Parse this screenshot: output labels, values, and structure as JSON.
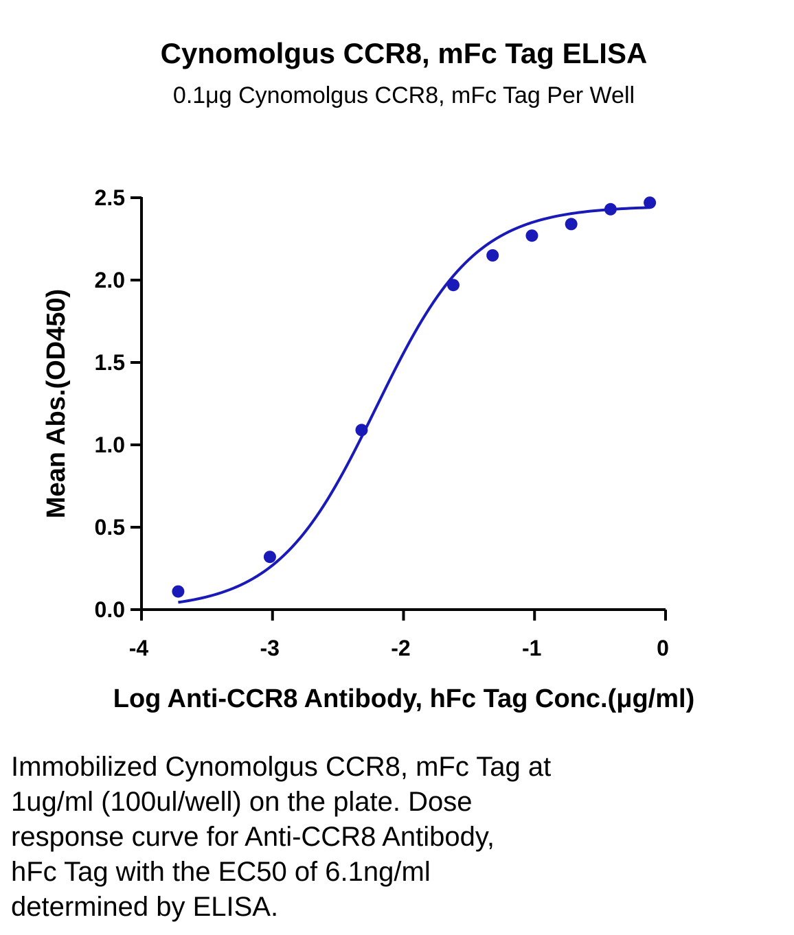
{
  "chart_data": {
    "type": "scatter",
    "title": "Cynomolgus CCR8, mFc Tag ELISA",
    "subtitle": "0.1μg Cynomolgus CCR8, mFc Tag Per Well",
    "xlabel": "Log Anti-CCR8 Antibody, hFc Tag Conc.(μg/ml)",
    "ylabel": "Mean Abs.(OD450)",
    "xlim": [
      -4,
      0
    ],
    "ylim": [
      0,
      2.5
    ],
    "x_ticks": [
      "-4",
      "-3",
      "-2",
      "-1",
      "0"
    ],
    "y_ticks": [
      "0.0",
      "0.5",
      "1.0",
      "1.5",
      "2.0",
      "2.5"
    ],
    "grid": false,
    "color": "#1a1ab8",
    "points": [
      {
        "x": -3.72,
        "y": 0.11
      },
      {
        "x": -3.02,
        "y": 0.32
      },
      {
        "x": -2.32,
        "y": 1.09
      },
      {
        "x": -1.62,
        "y": 1.97
      },
      {
        "x": -1.32,
        "y": 2.15
      },
      {
        "x": -1.02,
        "y": 2.27
      },
      {
        "x": -0.72,
        "y": 2.34
      },
      {
        "x": -0.42,
        "y": 2.43
      },
      {
        "x": -0.12,
        "y": 2.47
      }
    ],
    "fit_curve": {
      "model": "4PL",
      "bottom": 0.0,
      "top": 2.45,
      "log_ec50": -2.21,
      "hill_slope": 1.15,
      "x_range": [
        -3.72,
        -0.12
      ]
    }
  },
  "caption": "Immobilized Cynomolgus CCR8, mFc Tag at\n1ug/ml (100ul/well) on the plate. Dose\nresponse curve for Anti-CCR8 Antibody,\nhFc Tag with the EC50 of 6.1ng/ml\ndetermined by ELISA."
}
